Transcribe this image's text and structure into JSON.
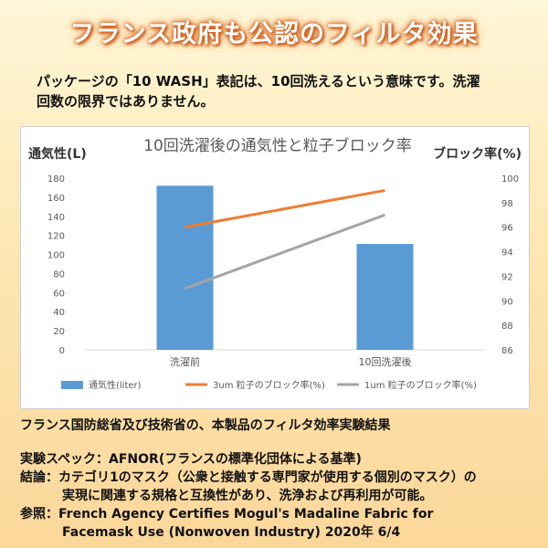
{
  "banner": {
    "title": "フランス政府も公認のフィルタ効果"
  },
  "intro": {
    "line1": "パッケージの「10 WASH」表記は、10回洗えるという意味です。洗濯",
    "line2": "回数の限界ではありません。"
  },
  "chart_data": {
    "type": "bar",
    "title": "10回洗濯後の通気性と粒子ブロック率",
    "categories": [
      "洗濯前",
      "10回洗濯後"
    ],
    "left_axis": {
      "label": "通気性(L)",
      "ylim": [
        0,
        180
      ],
      "ticks": [
        "0",
        "20",
        "40",
        "60",
        "80",
        "100",
        "120",
        "140",
        "160",
        "180"
      ]
    },
    "right_axis": {
      "label": "ブロック率(%)",
      "ylim": [
        86,
        100
      ],
      "ticks": [
        "86",
        "88",
        "90",
        "92",
        "94",
        "96",
        "98",
        "100"
      ]
    },
    "series": [
      {
        "name": "通気性(liter)",
        "kind": "bar",
        "axis": "left",
        "color": "#5b9bd5",
        "values": [
          172,
          111
        ]
      },
      {
        "name": "3um 粒子のブロック率(%)",
        "kind": "line",
        "axis": "right",
        "color": "#ed7d31",
        "values": [
          96.0,
          99.0
        ]
      },
      {
        "name": "1um 粒子のブロック率(%)",
        "kind": "line",
        "axis": "right",
        "color": "#a5a5a5",
        "values": [
          91.0,
          97.0
        ]
      }
    ],
    "grid": false,
    "legend_position": "bottom"
  },
  "notes": {
    "heading": "フランス国防総省及び技術省の、本製品のフィルタ効率実験結果",
    "spec": "実験スペック：AFNOR(フランスの標準化団体による基準)",
    "conclusion_1": "結論：カテゴリ1のマスク（公衆と接触する専門家が使用する個別のマスク）の",
    "conclusion_2": "実現に関連する規格と互換性があり、洗浄および再利用が可能。",
    "reference_1": "参照：French Agency Certifies Mogul's Madaline Fabric for",
    "reference_2": "Facemask Use (Nonwoven Industry) 2020年 6/4"
  }
}
